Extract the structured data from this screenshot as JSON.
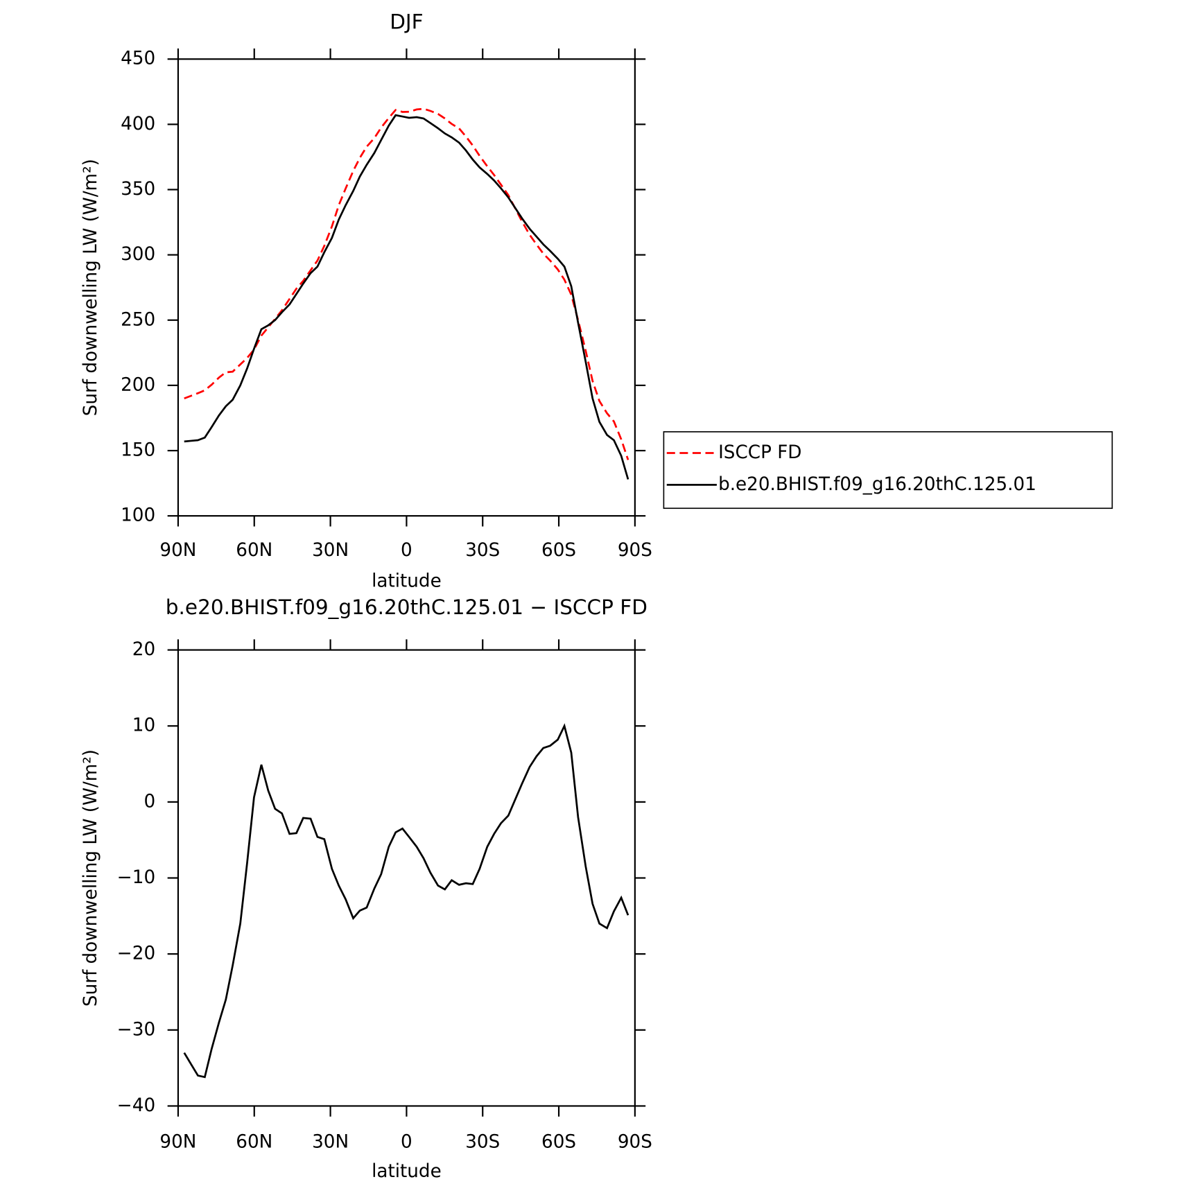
{
  "chart_data": [
    {
      "type": "line",
      "title": "DJF",
      "xlabel": "latitude",
      "ylabel": "Surf downwelling LW (W/m²)",
      "x": [
        87.6,
        84.9,
        82.2,
        79.5,
        76.8,
        73.9,
        71.2,
        68.5,
        65.5,
        62.8,
        60.1,
        57.2,
        54.5,
        51.8,
        49.1,
        46.1,
        43.4,
        40.7,
        37.8,
        35.1,
        32.4,
        29.4,
        26.7,
        24.0,
        21.0,
        18.4,
        15.7,
        12.7,
        10.0,
        7.0,
        4.3,
        1.6,
        -1.0,
        -4.0,
        -6.7,
        -9.4,
        -12.4,
        -15.1,
        -17.8,
        -20.7,
        -23.4,
        -26.1,
        -28.8,
        -31.8,
        -34.5,
        -37.2,
        -40.1,
        -42.8,
        -45.5,
        -48.5,
        -51.2,
        -53.9,
        -56.6,
        -59.6,
        -62.2,
        -64.9,
        -67.6,
        -70.6,
        -73.3,
        -76.0,
        -79.0,
        -81.7,
        -84.6,
        -87.3
      ],
      "series": [
        {
          "name": "ISCCP FD",
          "color": "#ff0000",
          "line_style": "dashed",
          "values": [
            190,
            192,
            194,
            196.2,
            200.5,
            206,
            210,
            210.5,
            216,
            221,
            227.4,
            238.1,
            244.5,
            250.9,
            257.5,
            266.2,
            274.1,
            280.1,
            288.2,
            295.6,
            306.9,
            321.8,
            338,
            350.8,
            364.3,
            374.3,
            382.9,
            389.4,
            397.5,
            404.9,
            411,
            409.5,
            409.6,
            411.4,
            411.9,
            410.3,
            408,
            404.5,
            400.3,
            396.9,
            390.7,
            383.8,
            375.8,
            367.9,
            361.2,
            353.8,
            345.8,
            335.7,
            325.6,
            315.4,
            308,
            300.9,
            295.6,
            288.8,
            281,
            269.5,
            250,
            226.5,
            203.4,
            188,
            178.6,
            172.4,
            158.6,
            142.9
          ]
        },
        {
          "name": "b.e20.BHIST.f09_g16.20thC.125.01",
          "color": "#000000",
          "line_style": "solid",
          "values": [
            157,
            157.5,
            158,
            160,
            168,
            177,
            184,
            189,
            200,
            213,
            228,
            243,
            246,
            250,
            256,
            262,
            270,
            278,
            286,
            291,
            302,
            313,
            327,
            338,
            349,
            360,
            369,
            378,
            388,
            399,
            407,
            406,
            405,
            405.5,
            404.5,
            401,
            397,
            393,
            390,
            386,
            380,
            373,
            367,
            362,
            357,
            351,
            344,
            336,
            328,
            320,
            314,
            308,
            303,
            297,
            291,
            276,
            248,
            218,
            190,
            172,
            162,
            158,
            146,
            128
          ]
        }
      ],
      "xlim": [
        90,
        -90
      ],
      "xticks": [
        {
          "value": 90,
          "label": "90N"
        },
        {
          "value": 60,
          "label": "60N"
        },
        {
          "value": 30,
          "label": "30N"
        },
        0,
        {
          "value": -30,
          "label": "30S"
        },
        {
          "value": -60,
          "label": "60S"
        },
        {
          "value": -90,
          "label": "90S"
        }
      ],
      "ylim": [
        100,
        450
      ],
      "yticks": [
        100,
        150,
        200,
        250,
        300,
        350,
        400,
        450
      ],
      "legend": "right"
    },
    {
      "type": "line",
      "title": "b.e20.BHIST.f09_g16.20thC.125.01 − ISCCP FD",
      "xlabel": "latitude",
      "ylabel": "Surf downwelling LW (W/m²)",
      "x": [
        87.6,
        84.9,
        82.2,
        79.5,
        76.8,
        73.9,
        71.2,
        68.5,
        65.5,
        62.8,
        60.1,
        57.2,
        54.5,
        51.8,
        49.1,
        46.1,
        43.4,
        40.7,
        37.8,
        35.1,
        32.4,
        29.4,
        26.7,
        24.0,
        21.0,
        18.4,
        15.7,
        12.7,
        10.0,
        7.0,
        4.3,
        1.6,
        -1.0,
        -4.0,
        -6.7,
        -9.4,
        -12.4,
        -15.1,
        -17.8,
        -20.7,
        -23.4,
        -26.1,
        -28.8,
        -31.8,
        -34.5,
        -37.2,
        -40.1,
        -42.8,
        -45.5,
        -48.5,
        -51.2,
        -53.9,
        -56.6,
        -59.6,
        -62.2,
        -64.9,
        -67.6,
        -70.6,
        -73.3,
        -76.0,
        -79.0,
        -81.7,
        -84.6,
        -87.3
      ],
      "color": "#000000",
      "line_style": "solid",
      "values": [
        -33,
        -34.5,
        -36,
        -36.2,
        -32.5,
        -29,
        -26,
        -21.5,
        -16,
        -8,
        0.6,
        4.9,
        1.5,
        -0.9,
        -1.5,
        -4.2,
        -4.1,
        -2.1,
        -2.2,
        -4.6,
        -4.9,
        -8.8,
        -11,
        -12.8,
        -15.3,
        -14.3,
        -13.9,
        -11.4,
        -9.5,
        -5.9,
        -4,
        -3.5,
        -4.6,
        -5.9,
        -7.4,
        -9.3,
        -11,
        -11.5,
        -10.3,
        -10.9,
        -10.7,
        -10.8,
        -8.8,
        -5.9,
        -4.2,
        -2.8,
        -1.8,
        0.3,
        2.4,
        4.6,
        6,
        7.1,
        7.4,
        8.2,
        10,
        6.5,
        -2,
        -8.5,
        -13.4,
        -16,
        -16.6,
        -14.4,
        -12.6,
        -14.9
      ],
      "xlim": [
        90,
        -90
      ],
      "xticks": [
        {
          "value": 90,
          "label": "90N"
        },
        {
          "value": 60,
          "label": "60N"
        },
        {
          "value": 30,
          "label": "30N"
        },
        0,
        {
          "value": -30,
          "label": "30S"
        },
        {
          "value": -60,
          "label": "60S"
        },
        {
          "value": -90,
          "label": "90S"
        }
      ],
      "ylim": [
        -40,
        20
      ],
      "yticks": [
        {
          "value": -40,
          "label": "−40"
        },
        {
          "value": -30,
          "label": "−30"
        },
        {
          "value": -20,
          "label": "−20"
        },
        {
          "value": -10,
          "label": "−10"
        },
        0,
        10,
        20
      ]
    }
  ]
}
